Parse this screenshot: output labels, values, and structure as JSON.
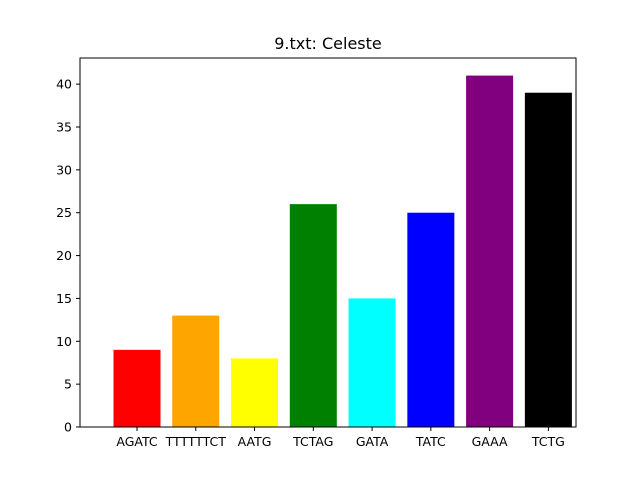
{
  "chart_data": {
    "type": "bar",
    "title": "9.txt: Celeste",
    "xlabel": "",
    "ylabel": "",
    "categories": [
      "AGATC",
      "TTTTTTCT",
      "AATG",
      "TCTAG",
      "GATA",
      "TATC",
      "GAAA",
      "TCTG"
    ],
    "values": [
      9,
      13,
      8,
      26,
      15,
      25,
      41,
      39
    ],
    "colors": [
      "#ff0000",
      "#ffa500",
      "#ffff00",
      "#008000",
      "#00ffff",
      "#0000ff",
      "#800080",
      "#000000"
    ],
    "ylim": [
      0,
      43.05
    ],
    "yticks": [
      0,
      5,
      10,
      15,
      20,
      25,
      30,
      35,
      40
    ],
    "grid": false,
    "legend": "none"
  }
}
